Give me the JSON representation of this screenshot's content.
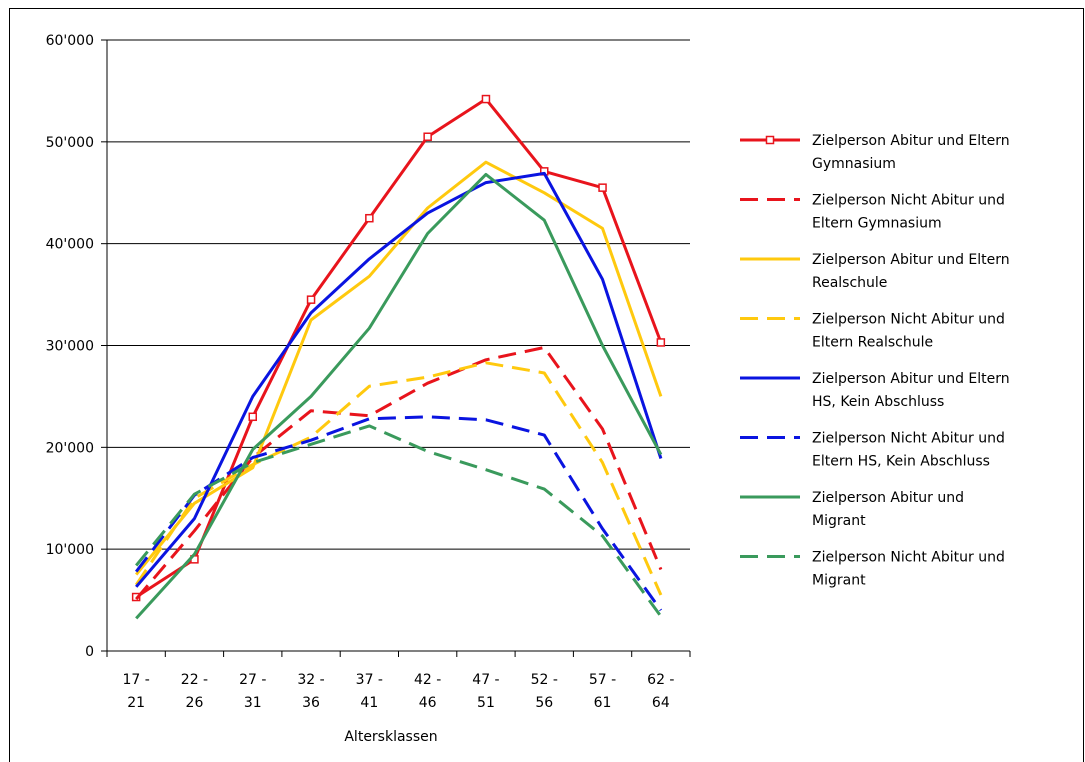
{
  "chart_data": {
    "type": "line",
    "xlabel": "Altersklassen",
    "ylabel": "",
    "ylim": [
      0,
      60000
    ],
    "yticks": [
      "0",
      "10'000",
      "20'000",
      "30'000",
      "40'000",
      "50'000",
      "60'000"
    ],
    "ytick_values": [
      0,
      10000,
      20000,
      30000,
      40000,
      50000,
      60000
    ],
    "categories": [
      [
        "17 -",
        "21"
      ],
      [
        "22 -",
        "26"
      ],
      [
        "27 -",
        "31"
      ],
      [
        "32 -",
        "36"
      ],
      [
        "37 -",
        "41"
      ],
      [
        "42 -",
        "46"
      ],
      [
        "47 -",
        "51"
      ],
      [
        "52 -",
        "56"
      ],
      [
        "57 -",
        "61"
      ],
      [
        "62 -",
        "64"
      ]
    ],
    "grid": "horizontal",
    "legend_position": "right",
    "series": [
      {
        "name": [
          "Zielperson Abitur und Eltern",
          "Gymnasium"
        ],
        "color": "#E8141C",
        "dash": "solid",
        "marker": "square",
        "values": [
          5300,
          9000,
          23000,
          34500,
          42500,
          50500,
          54200,
          47100,
          45500,
          30300
        ]
      },
      {
        "name": [
          "Zielperson Nicht Abitur und",
          "Eltern Gymnasium"
        ],
        "color": "#E8141C",
        "dash": "dashed",
        "marker": "none",
        "values": [
          5100,
          11800,
          19000,
          23600,
          23100,
          26300,
          28600,
          29800,
          21800,
          8000
        ]
      },
      {
        "name": [
          "Zielperson Abitur und Eltern",
          "Realschule"
        ],
        "color": "#FFC90E",
        "dash": "solid",
        "marker": "none",
        "values": [
          7500,
          14500,
          18000,
          32500,
          36800,
          43500,
          48000,
          45000,
          41500,
          25000
        ]
      },
      {
        "name": [
          "Zielperson Nicht Abitur und",
          "Eltern Realschule"
        ],
        "color": "#FFC90E",
        "dash": "dashed",
        "marker": "none",
        "values": [
          6500,
          15000,
          18300,
          21000,
          26000,
          26900,
          28300,
          27300,
          18500,
          5500
        ]
      },
      {
        "name": [
          "Zielperson Abitur und Eltern",
          "HS, Kein Abschluss"
        ],
        "color": "#0A14E0",
        "dash": "solid",
        "marker": "none",
        "values": [
          6300,
          13000,
          25000,
          33200,
          38500,
          43000,
          46000,
          46900,
          36500,
          18900
        ]
      },
      {
        "name": [
          "Zielperson Nicht Abitur und",
          "Eltern HS, Kein Abschluss"
        ],
        "color": "#0A14E0",
        "dash": "dashed",
        "marker": "none",
        "values": [
          7800,
          15300,
          19000,
          20700,
          22800,
          23000,
          22700,
          21200,
          12000,
          4000
        ]
      },
      {
        "name": [
          "Zielperson Abitur und",
          "Migrant"
        ],
        "color": "#3A9A5C",
        "dash": "solid",
        "marker": "none",
        "values": [
          3200,
          9500,
          19800,
          25000,
          31700,
          41000,
          46800,
          42300,
          30000,
          19300
        ]
      },
      {
        "name": [
          "Zielperson Nicht Abitur und",
          "Migrant"
        ],
        "color": "#3A9A5C",
        "dash": "dashed",
        "marker": "none",
        "values": [
          8400,
          15400,
          18500,
          20300,
          22100,
          19600,
          17800,
          15900,
          11300,
          3400
        ]
      }
    ]
  }
}
